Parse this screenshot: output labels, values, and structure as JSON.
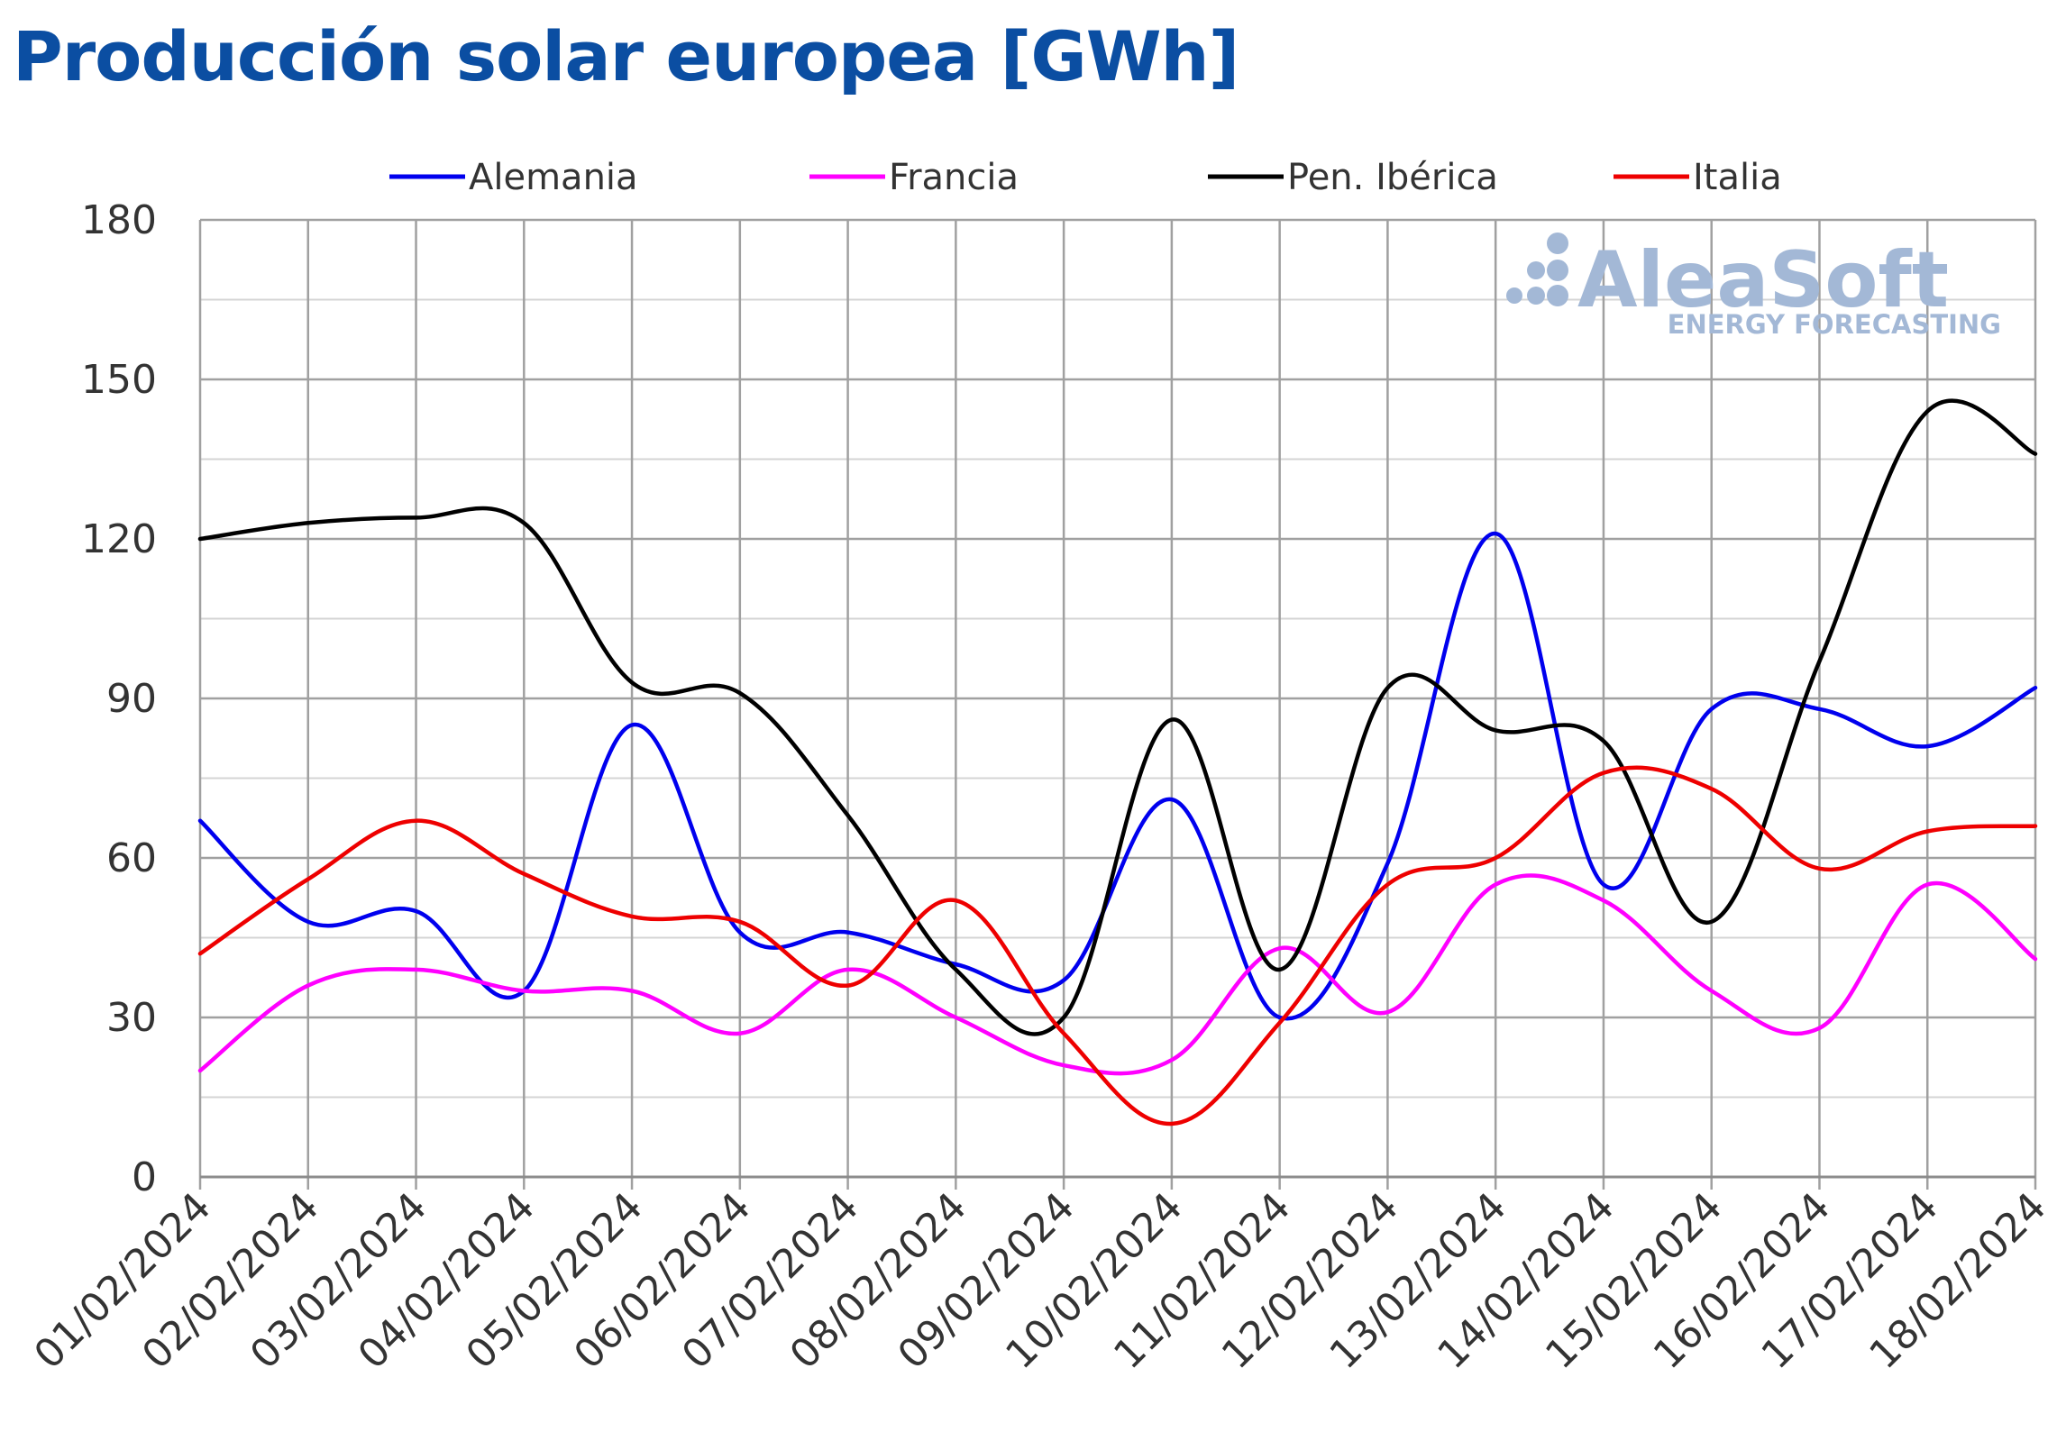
{
  "title": "Producción solar europea [GWh]",
  "watermark": {
    "brand": "AleaSoft",
    "tagline": "ENERGY FORECASTING",
    "color": "#a3b8d6"
  },
  "chart_data": {
    "type": "line",
    "title": "Producción solar europea [GWh]",
    "xlabel": "",
    "ylabel": "",
    "ylim": [
      0,
      180
    ],
    "yticks": [
      0,
      30,
      60,
      90,
      120,
      150,
      180
    ],
    "grid": true,
    "legend_position": "top",
    "x": [
      "01/02/2024",
      "02/02/2024",
      "03/02/2024",
      "04/02/2024",
      "05/02/2024",
      "06/02/2024",
      "07/02/2024",
      "08/02/2024",
      "09/02/2024",
      "10/02/2024",
      "11/02/2024",
      "12/02/2024",
      "13/02/2024",
      "14/02/2024",
      "15/02/2024",
      "16/02/2024",
      "17/02/2024",
      "18/02/2024"
    ],
    "series": [
      {
        "name": "Alemania",
        "color": "#0000ee",
        "values": [
          67,
          48,
          50,
          35,
          85,
          46,
          46,
          40,
          37,
          71,
          30,
          59,
          121,
          55,
          88,
          88,
          81,
          92
        ]
      },
      {
        "name": "Francia",
        "color": "#ff00ff",
        "values": [
          20,
          36,
          39,
          35,
          35,
          27,
          39,
          30,
          21,
          22,
          43,
          31,
          55,
          52,
          35,
          28,
          55,
          41
        ]
      },
      {
        "name": "Pen. Ibérica",
        "color": "#000000",
        "values": [
          120,
          123,
          124,
          123,
          93,
          91,
          68,
          39,
          30,
          86,
          39,
          92,
          84,
          82,
          48,
          97,
          144,
          136
        ]
      },
      {
        "name": "Italia",
        "color": "#ee0000",
        "values": [
          42,
          56,
          67,
          57,
          49,
          48,
          36,
          52,
          27,
          10,
          29,
          55,
          60,
          76,
          73,
          58,
          65,
          66
        ]
      }
    ]
  }
}
